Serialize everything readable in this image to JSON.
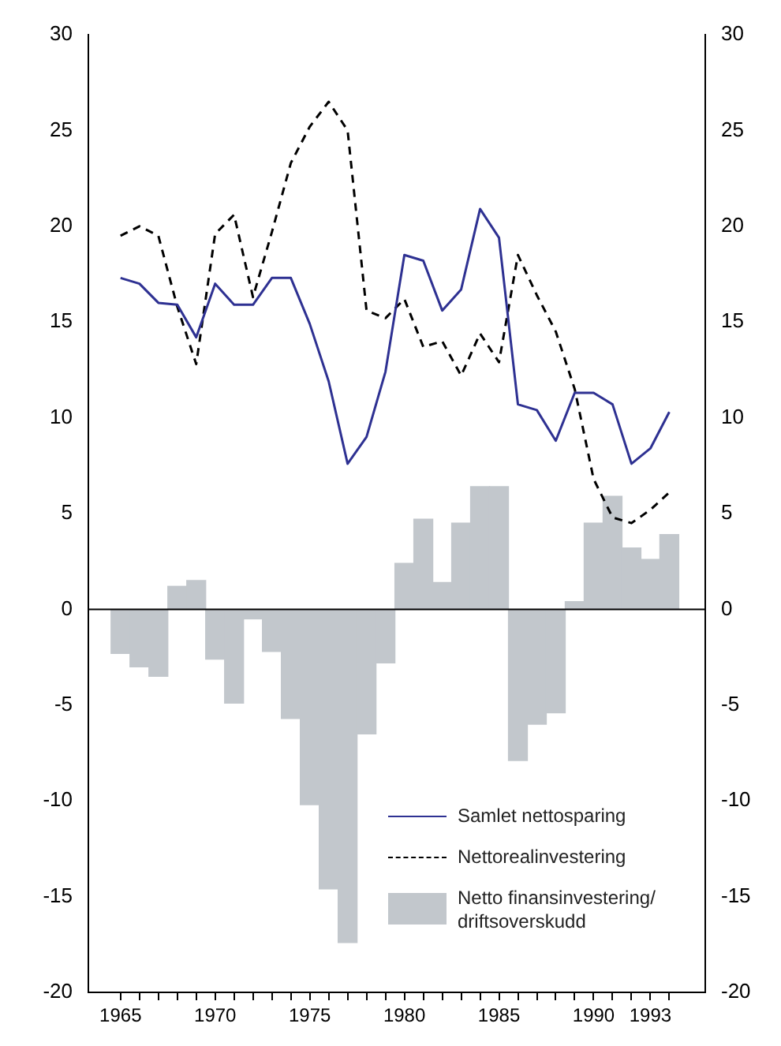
{
  "chart_data": {
    "type": "bar",
    "x": [
      1965,
      1966,
      1967,
      1968,
      1969,
      1970,
      1971,
      1972,
      1973,
      1974,
      1975,
      1976,
      1977,
      1978,
      1979,
      1980,
      1981,
      1982,
      1983,
      1984,
      1985,
      1986,
      1987,
      1988,
      1989,
      1990,
      1991,
      1992,
      1993,
      1994
    ],
    "series": [
      {
        "name": "Samlet nettosparing",
        "type": "line",
        "color": "#2e3192",
        "line_style": "solid",
        "values": [
          17.3,
          17,
          16,
          15.9,
          14.2,
          17,
          15.9,
          15.9,
          17.3,
          17.3,
          14.9,
          11.9,
          7.6,
          9,
          12.4,
          18.5,
          18.2,
          15.6,
          16.7,
          20.9,
          19.4,
          10.7,
          10.4,
          8.8,
          11.3,
          11.3,
          10.7,
          7.6,
          8.4,
          10.3
        ]
      },
      {
        "name": "Nettorealinvestering",
        "type": "line",
        "color": "#000000",
        "line_style": "dashed",
        "values": [
          19.5,
          20,
          19.5,
          15.8,
          12.8,
          19.6,
          20.6,
          16.3,
          19.7,
          23.3,
          25.2,
          26.5,
          25,
          15.6,
          15.2,
          16.2,
          13.7,
          14,
          12.2,
          14.4,
          12.9,
          18.5,
          16.4,
          14.5,
          11.5,
          6.8,
          4.8,
          4.5,
          5.2,
          6.1
        ]
      },
      {
        "name": "Netto finansinvestering/driftsoverskudd",
        "color": "#c2c7cc",
        "values": [
          -2.3,
          -3,
          -3.5,
          1.2,
          1.5,
          -2.6,
          -4.9,
          -0.5,
          -2.2,
          -5.7,
          -10.2,
          -14.6,
          -17.4,
          -6.5,
          -2.8,
          2.4,
          4.7,
          1.4,
          4.5,
          6.4,
          6.4,
          -7.9,
          -6,
          -5.4,
          0.4,
          4.5,
          5.9,
          3.2,
          2.6,
          3.9
        ]
      }
    ],
    "xlim": [
      1963.3,
      1995.9
    ],
    "xticks": [
      1965,
      {
        "value": 1966,
        "label": null
      },
      {
        "value": 1967,
        "label": null
      },
      {
        "value": 1968,
        "label": null
      },
      {
        "value": 1969,
        "label": null
      },
      1970,
      {
        "value": 1971,
        "label": null
      },
      {
        "value": 1972,
        "label": null
      },
      {
        "value": 1973,
        "label": null
      },
      {
        "value": 1974,
        "label": null
      },
      1975,
      {
        "value": 1976,
        "label": null
      },
      {
        "value": 1977,
        "label": null
      },
      {
        "value": 1978,
        "label": null
      },
      {
        "value": 1979,
        "label": null
      },
      1980,
      {
        "value": 1981,
        "label": null
      },
      {
        "value": 1982,
        "label": null
      },
      {
        "value": 1983,
        "label": null
      },
      {
        "value": 1984,
        "label": null
      },
      1985,
      {
        "value": 1986,
        "label": null
      },
      {
        "value": 1987,
        "label": null
      },
      {
        "value": 1988,
        "label": null
      },
      {
        "value": 1989,
        "label": null
      },
      1990,
      {
        "value": 1991,
        "label": null
      },
      {
        "value": 1992,
        "label": null
      },
      1993,
      {
        "value": 1994,
        "label": null
      }
    ],
    "ylim": [
      -20,
      30
    ],
    "yticks": [
      -20,
      -15,
      -10,
      -5,
      0,
      5,
      10,
      15,
      20,
      25,
      30
    ],
    "y2lim": [
      -20,
      30
    ],
    "y2ticks": [
      -20,
      -15,
      -10,
      -5,
      0,
      5,
      10,
      15,
      20,
      25,
      30
    ],
    "ref_lines": [
      {
        "axis": "y",
        "value": 0,
        "color": "#000000"
      }
    ],
    "grid": false,
    "legend": "bottom right"
  }
}
